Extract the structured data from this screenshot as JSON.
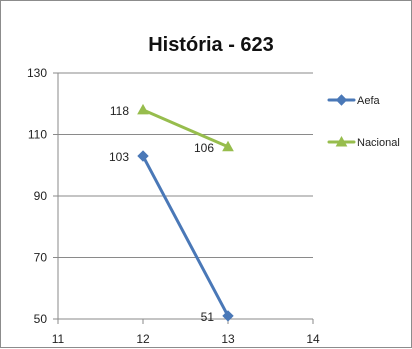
{
  "chart_data": {
    "type": "line",
    "title": "História -  623",
    "xlim": [
      11,
      14
    ],
    "ylim": [
      50,
      130
    ],
    "x_ticks": [
      11,
      12,
      13,
      14
    ],
    "y_ticks": [
      50,
      70,
      90,
      110,
      130
    ],
    "x_tick_labels": [
      "11",
      "12",
      "13",
      "14"
    ],
    "y_tick_labels": [
      "50",
      "70",
      "90",
      "110",
      "130"
    ],
    "grid": "horizontal",
    "legend_position": "right",
    "series": [
      {
        "name": "Aefa",
        "color": "#4a78b7",
        "marker": "diamond",
        "points": [
          {
            "x": 12,
            "y": 103,
            "label": "103"
          },
          {
            "x": 13,
            "y": 51,
            "label": "51"
          }
        ]
      },
      {
        "name": "Nacional",
        "color": "#97bd4d",
        "marker": "triangle",
        "points": [
          {
            "x": 12,
            "y": 118,
            "label": "118"
          },
          {
            "x": 13,
            "y": 106,
            "label": "106"
          }
        ]
      }
    ]
  }
}
